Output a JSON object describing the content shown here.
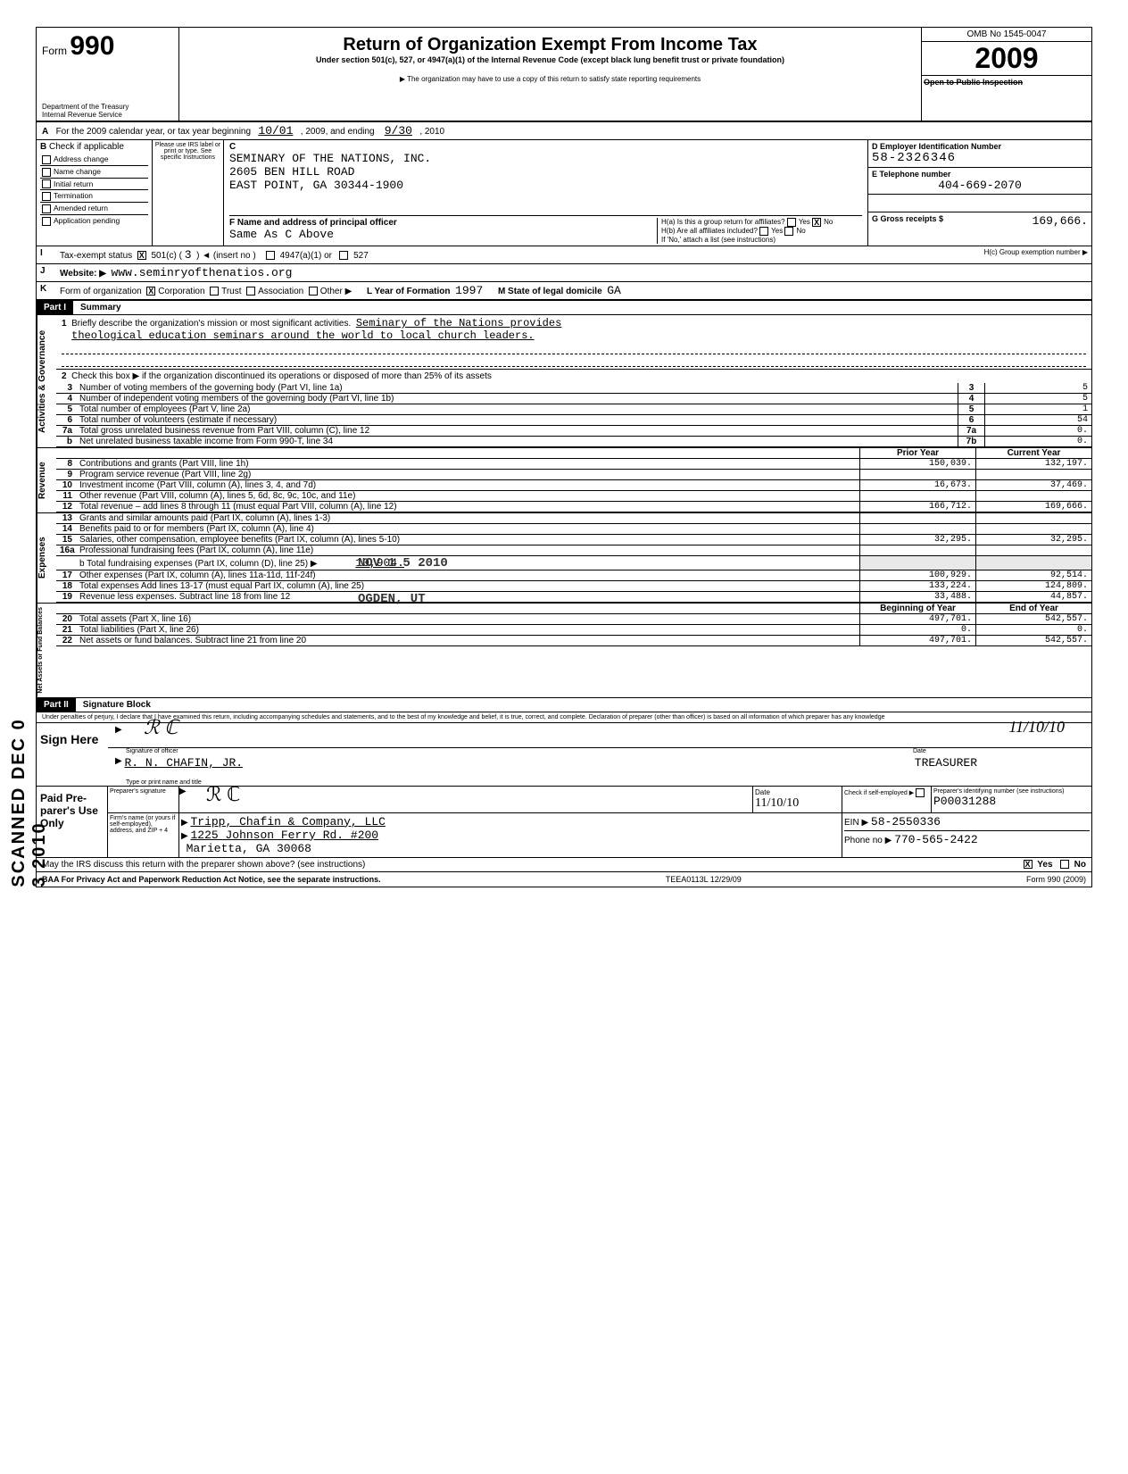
{
  "form": {
    "number_label": "Form",
    "number": "990",
    "dept1": "Department of the Treasury",
    "dept2": "Internal Revenue Service",
    "title": "Return of Organization Exempt From Income Tax",
    "sub1": "Under section 501(c), 527, or 4947(a)(1) of the Internal Revenue Code (except black lung benefit trust or private foundation)",
    "sub2": "▶ The organization may have to use a copy of this return to satisfy state reporting requirements",
    "omb": "OMB No 1545-0047",
    "year": "2009",
    "open_pub": "Open to Public Inspection"
  },
  "cal_year": {
    "prefix": "For the 2009 calendar year, or tax year beginning",
    "begin": "10/01",
    "mid": ", 2009, and ending",
    "end": "9/30",
    "suffix": ", 2010"
  },
  "B": {
    "heading": "Check if applicable",
    "items": [
      "Address change",
      "Name change",
      "Initial return",
      "Termination",
      "Amended return",
      "Application pending"
    ],
    "c_heading": "C",
    "please_use": "Please use IRS label or print or type. See specific Instructions",
    "name": "SEMINARY OF THE NATIONS, INC.",
    "addr1": "2605 BEN HILL ROAD",
    "addr2": "EAST POINT, GA 30344-1900",
    "D_label": "D  Employer Identification Number",
    "D_val": "58-2326346",
    "E_label": "E  Telephone number",
    "E_val": "404-669-2070",
    "G_label": "G  Gross receipts $",
    "G_val": "169,666.",
    "F_label": "F  Name and address of principal officer",
    "F_val": "Same As C Above",
    "Ha": "H(a) Is this a group return for affiliates?",
    "Hb": "H(b) Are all affiliates included?",
    "Hnote": "If 'No,' attach a list (see instructions)",
    "Hc": "H(c) Group exemption number ▶",
    "yes": "Yes",
    "no": "No"
  },
  "I": {
    "label": "Tax-exempt status",
    "c501": "501(c)",
    "ins": "3",
    "arrow": ") ◄  (insert no )",
    "a4947": "4947(a)(1) or",
    "a527": "527"
  },
  "J": {
    "label": "Website: ▶",
    "val": "www.seminryofthenatios.org"
  },
  "K": {
    "label": "Form of organization",
    "corp": "Corporation",
    "trust": "Trust",
    "assoc": "Association",
    "other": "Other ▶",
    "L": "L Year of Formation",
    "Lval": "1997",
    "M": "M State of legal domicile",
    "Mval": "GA"
  },
  "part1": {
    "tag": "Part I",
    "title": "Summary"
  },
  "activities": {
    "side": "Activities & Governance",
    "l1a": "Briefly describe the organization's mission or most significant activities.",
    "l1b": "Seminary of the Nations provides",
    "l1c": "theological education seminars around the world to local church leaders.",
    "l2": "Check this box ▶      if the organization discontinued its operations or disposed of more than 25% of its assets",
    "rows": [
      {
        "n": "3",
        "d": "Number of voting members of the governing body (Part VI, line 1a)",
        "box": "3",
        "val": "5"
      },
      {
        "n": "4",
        "d": "Number of independent voting members of the governing body (Part VI, line 1b)",
        "box": "4",
        "val": "5"
      },
      {
        "n": "5",
        "d": "Total number of employees (Part V, line 2a)",
        "box": "5",
        "val": "1"
      },
      {
        "n": "6",
        "d": "Total number of volunteers (estimate if necessary)",
        "box": "6",
        "val": "54"
      },
      {
        "n": "7a",
        "d": "Total gross unrelated business revenue from Part VIII, column (C), line 12",
        "box": "7a",
        "val": "0."
      },
      {
        "n": "b",
        "d": "Net unrelated business taxable income from Form 990-T, line 34",
        "box": "7b",
        "val": "0."
      }
    ]
  },
  "cols": {
    "prior": "Prior Year",
    "current": "Current Year",
    "boy": "Beginning of Year",
    "eoy": "End of Year"
  },
  "revenue": {
    "side": "Revenue",
    "rows": [
      {
        "n": "8",
        "d": "Contributions and grants (Part VIII, line 1h)",
        "py": "150,039.",
        "cy": "132,197."
      },
      {
        "n": "9",
        "d": "Program service revenue (Part VIII, line 2g)",
        "py": "",
        "cy": ""
      },
      {
        "n": "10",
        "d": "Investment income (Part VIII, column (A), lines 3, 4, and 7d)",
        "py": "16,673.",
        "cy": "37,469."
      },
      {
        "n": "11",
        "d": "Other revenue (Part VIII, column (A), lines 5, 6d, 8c, 9c, 10c, and 11e)",
        "py": "",
        "cy": ""
      },
      {
        "n": "12",
        "d": "Total revenue – add lines 8 through 11 (must equal Part VIII, column (A), line 12)",
        "py": "166,712.",
        "cy": "169,666."
      }
    ]
  },
  "expenses": {
    "side": "Expenses",
    "rows_top": [
      {
        "n": "13",
        "d": "Grants and similar amounts paid (Part IX, column (A), lines 1-3)",
        "py": "",
        "cy": ""
      },
      {
        "n": "14",
        "d": "Benefits paid to or for members (Part IX, column (A), line 4)",
        "py": "",
        "cy": ""
      },
      {
        "n": "15",
        "d": "Salaries, other compensation, employee benefits (Part IX, column (A), lines 5-10)",
        "py": "32,295.",
        "cy": "32,295."
      },
      {
        "n": "16a",
        "d": "Professional fundraising fees (Part IX, column (A), line 11e)",
        "py": "",
        "cy": ""
      }
    ],
    "l16b_a": "b Total fundraising expenses (Part IX, column (D), line 25) ▶",
    "l16b_v": "10,904.",
    "rows_bot": [
      {
        "n": "17",
        "d": "Other expenses (Part IX, column (A), lines 11a-11d, 11f-24f)",
        "py": "100,929.",
        "cy": "92,514."
      },
      {
        "n": "18",
        "d": "Total expenses  Add lines 13-17 (must equal Part IX, column (A), line 25)",
        "py": "133,224.",
        "cy": "124,809."
      },
      {
        "n": "19",
        "d": "Revenue less expenses. Subtract line 18 from line 12",
        "py": "33,488.",
        "cy": "44,857."
      }
    ]
  },
  "netassets": {
    "side": "Net Assets or Fund Balances",
    "rows": [
      {
        "n": "20",
        "d": "Total assets (Part X, line 16)",
        "py": "497,701.",
        "cy": "542,557."
      },
      {
        "n": "21",
        "d": "Total liabilities (Part X, line 26)",
        "py": "0.",
        "cy": "0."
      },
      {
        "n": "22",
        "d": "Net assets or fund balances. Subtract line 21 from line 20",
        "py": "497,701.",
        "cy": "542,557."
      }
    ]
  },
  "part2": {
    "tag": "Part II",
    "title": "Signature Block"
  },
  "penalties": "Under penalties of perjury, I declare that I have examined this return, including accompanying schedules and statements, and to the best of my knowledge and belief, it is true, correct, and complete. Declaration of preparer (other than officer) is based on all information of which preparer has any knowledge",
  "sign": {
    "here": "Sign Here",
    "arrow": "▶",
    "sig_of_officer": "Signature of officer",
    "date_lab": "Date",
    "officer_name": "R. N. CHAFIN, JR.",
    "officer_title": "TREASURER",
    "type_lab": "Type or print name and title",
    "hand_date": "11/10/10"
  },
  "paid": {
    "lab": "Paid Pre-parer's Use Only",
    "prep_sig": "Preparer's signature",
    "date_hand": "11/10/10",
    "self_emp": "Check if self-employed",
    "pin_lab": "Preparer's identifying number (see instructions)",
    "pin": "P00031288",
    "firm_lab": "Firm's name (or yours if self-employed), address, and ZIP + 4",
    "firm_name": "Tripp, Chafin & Company, LLC",
    "firm_addr1": "1225 Johnson Ferry Rd. #200",
    "firm_addr2": "Marietta, GA 30068",
    "ein_lab": "EIN",
    "ein": "58-2550336",
    "phone_lab": "Phone no",
    "phone": "770-565-2422"
  },
  "may_irs": "May the IRS discuss this return with the preparer shown above? (see instructions)",
  "baa": "BAA  For Privacy Act and Paperwork Reduction Act Notice, see the separate instructions.",
  "teea": "TEEA0113L  12/29/09",
  "footer_form": "Form 990 (2009)",
  "stamps": {
    "nov": "NOV 1 5 2010",
    "ogden": "OGDEN, UT"
  },
  "side_marks": "SCANNED  DEC 0 3 2010"
}
